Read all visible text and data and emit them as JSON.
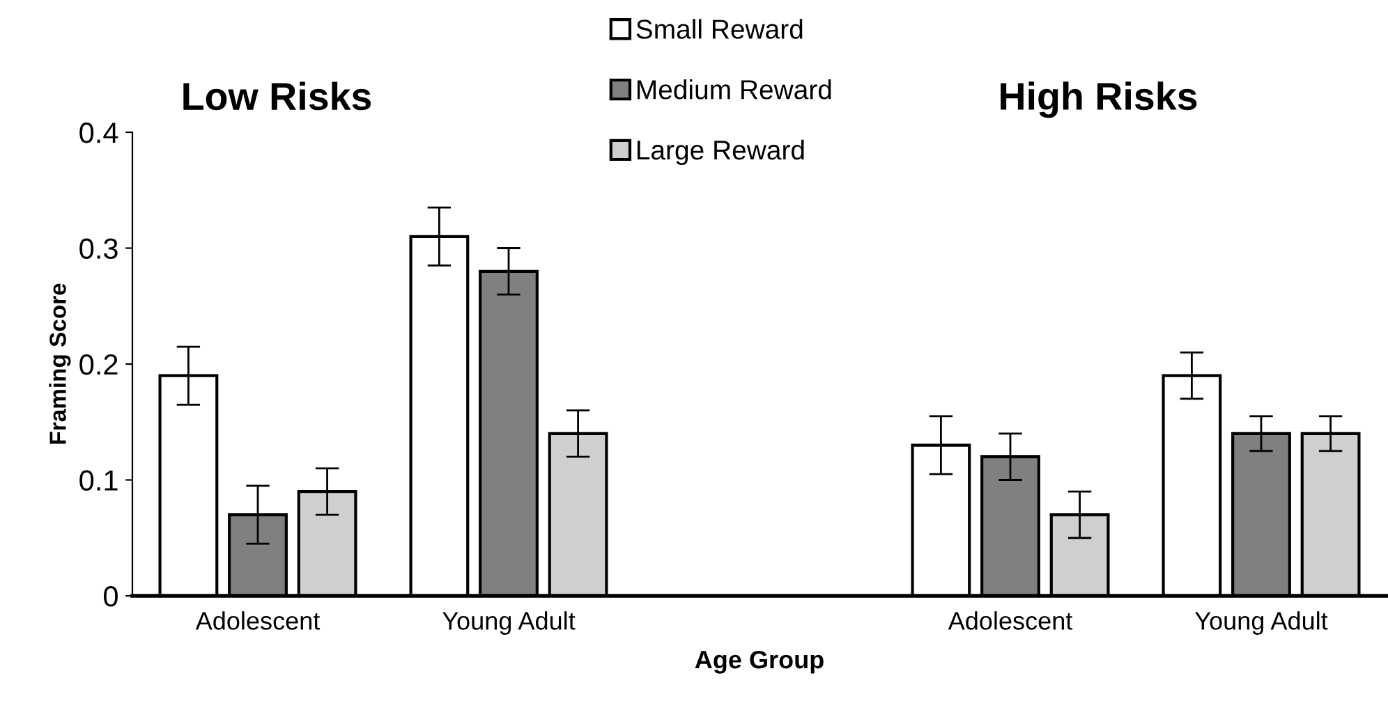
{
  "chart_data": {
    "type": "bar",
    "ylabel": "Framing Score",
    "xlabel": "Age Group",
    "annotations": [
      "Low Risks",
      "High Risks"
    ],
    "categories": [
      "Adolescent",
      "Young Adult",
      null,
      "Adolescent",
      "Young Adult"
    ],
    "series": [
      {
        "name": "Small Reward",
        "color": "#ffffff",
        "values": [
          0.19,
          0.31,
          null,
          0.13,
          0.19
        ],
        "errors": [
          0.025,
          0.025,
          null,
          0.025,
          0.02
        ]
      },
      {
        "name": "Medium Reward",
        "color": "#808080",
        "values": [
          0.07,
          0.28,
          null,
          0.12,
          0.14
        ],
        "errors": [
          0.025,
          0.02,
          null,
          0.02,
          0.015
        ]
      },
      {
        "name": "Large Reward",
        "color": "#d0cfd0",
        "values": [
          0.09,
          0.14,
          null,
          0.07,
          0.14
        ],
        "errors": [
          0.02,
          0.02,
          null,
          0.02,
          0.015
        ]
      }
    ],
    "ylim": [
      0,
      0.4
    ],
    "yticks": [
      0,
      0.1,
      0.2,
      0.3,
      0.4
    ],
    "grid": false,
    "legend": "top"
  }
}
